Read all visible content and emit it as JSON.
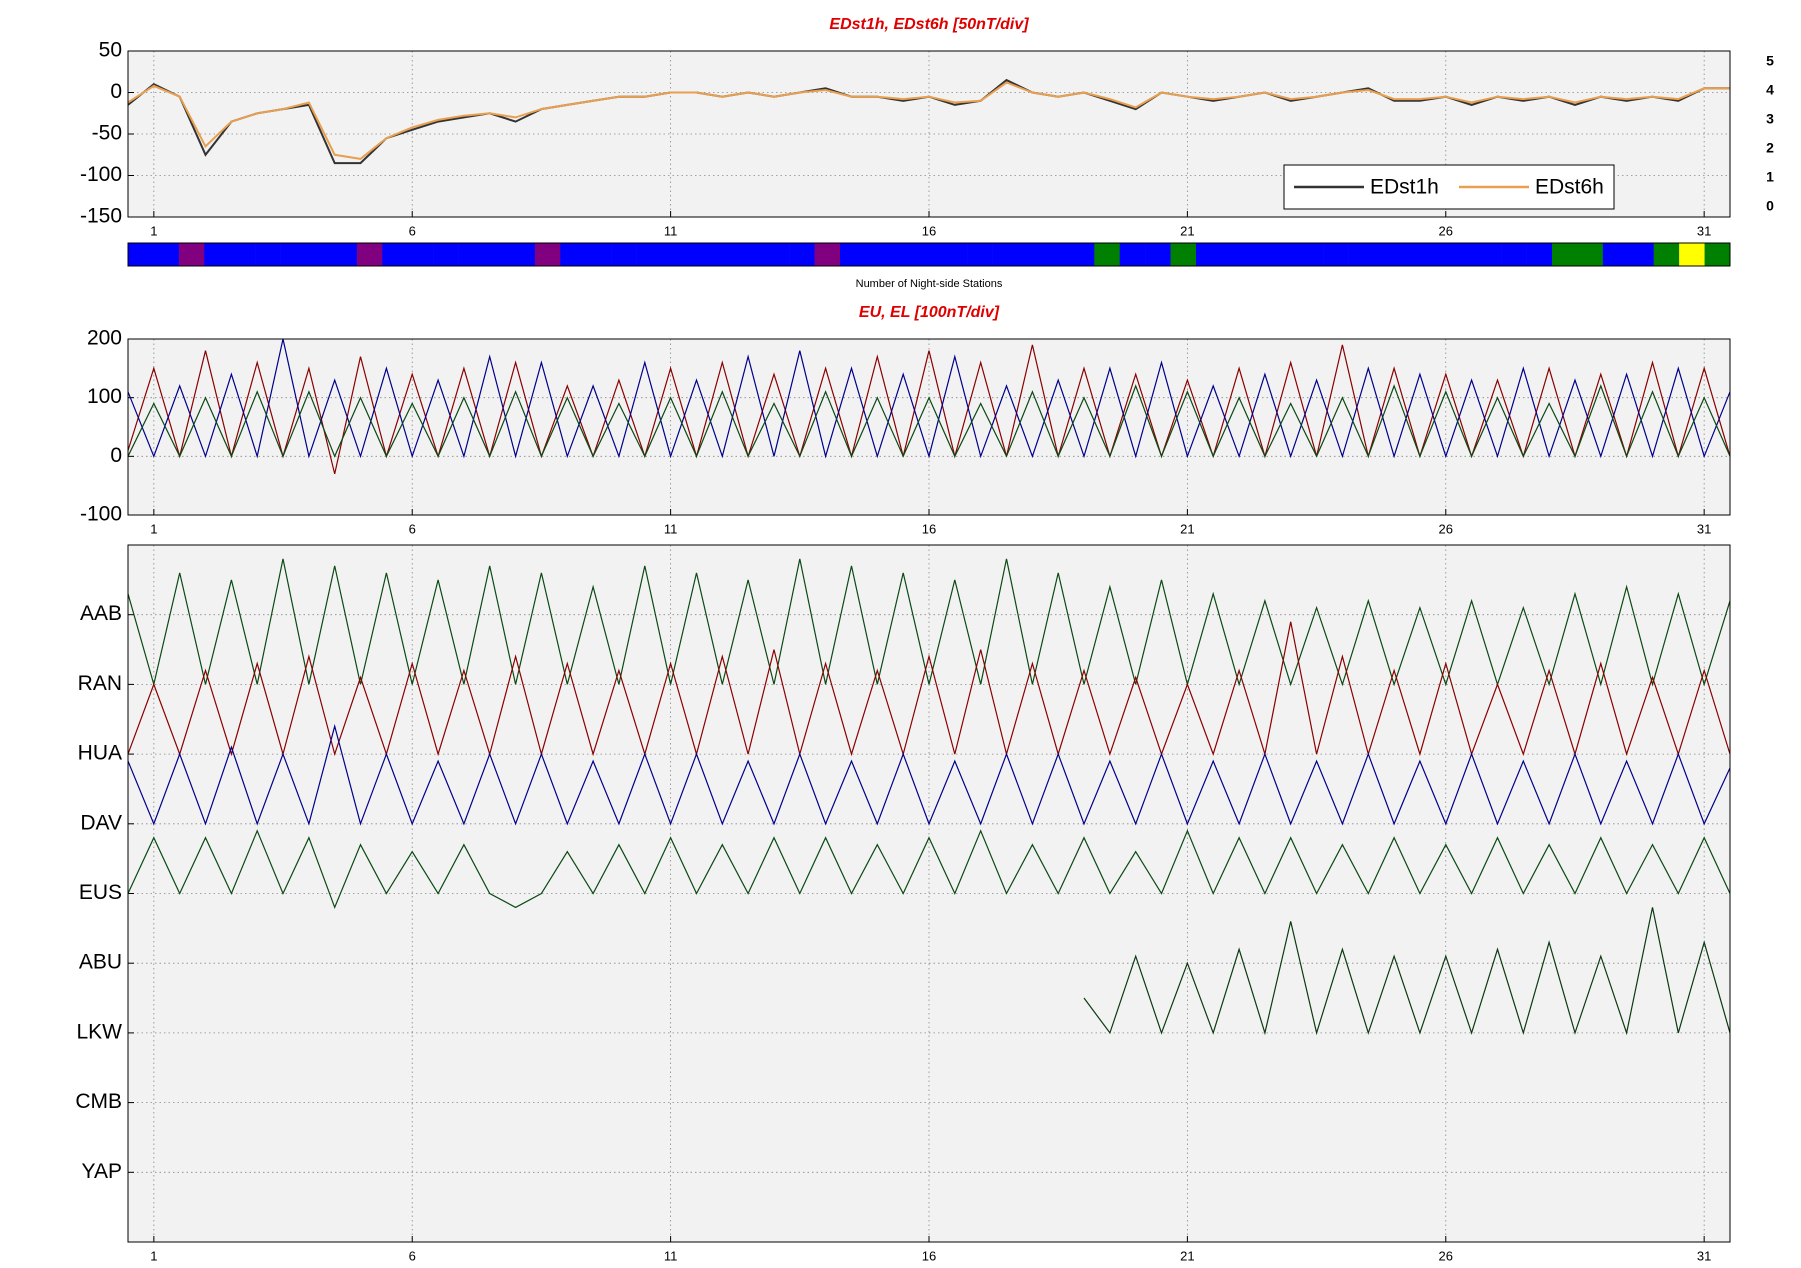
{
  "chart_data": [
    {
      "type": "line",
      "title": "EDst1h, EDst6h [50nT/div]",
      "x": [
        0.5,
        1,
        1.5,
        2,
        2.5,
        3,
        3.5,
        4,
        4.5,
        5,
        5.5,
        6,
        6.5,
        7,
        7.5,
        8,
        8.5,
        9,
        9.5,
        10,
        10.5,
        11,
        11.5,
        12,
        12.5,
        13,
        13.5,
        14,
        14.5,
        15,
        15.5,
        16,
        16.5,
        17,
        17.5,
        18,
        18.5,
        19,
        19.5,
        20,
        20.5,
        21,
        21.5,
        22,
        22.5,
        23,
        23.5,
        24,
        24.5,
        25,
        25.5,
        26,
        26.5,
        27,
        27.5,
        28,
        28.5,
        29,
        29.5,
        30,
        30.5,
        31,
        31.5
      ],
      "series": [
        {
          "name": "EDst1h",
          "color": "#333333",
          "values": [
            -15,
            10,
            -5,
            -75,
            -35,
            -25,
            -20,
            -15,
            -85,
            -85,
            -55,
            -45,
            -35,
            -30,
            -25,
            -35,
            -20,
            -15,
            -10,
            -5,
            -5,
            0,
            0,
            -5,
            0,
            -5,
            0,
            5,
            -5,
            -5,
            -10,
            -5,
            -15,
            -10,
            15,
            0,
            -5,
            0,
            -10,
            -20,
            0,
            -5,
            -10,
            -5,
            0,
            -10,
            -5,
            0,
            5,
            -10,
            -10,
            -5,
            -15,
            -5,
            -10,
            -5,
            -15,
            -5,
            -10,
            -5,
            -10,
            5,
            5
          ]
        },
        {
          "name": "EDst6h",
          "color": "#e8a050",
          "values": [
            -12,
            8,
            -5,
            -65,
            -35,
            -25,
            -20,
            -12,
            -75,
            -80,
            -55,
            -42,
            -33,
            -28,
            -25,
            -30,
            -20,
            -15,
            -10,
            -5,
            -5,
            0,
            0,
            -5,
            0,
            -5,
            0,
            3,
            -5,
            -5,
            -8,
            -5,
            -12,
            -10,
            12,
            0,
            -5,
            0,
            -8,
            -18,
            0,
            -5,
            -8,
            -5,
            0,
            -8,
            -5,
            0,
            3,
            -8,
            -8,
            -5,
            -12,
            -5,
            -8,
            -5,
            -12,
            -5,
            -8,
            -5,
            -8,
            5,
            5
          ]
        }
      ],
      "xlim": [
        0.5,
        31.5
      ],
      "xticks": [
        1,
        6,
        11,
        16,
        21,
        26,
        31
      ],
      "ylim": [
        -150,
        50
      ],
      "yticks": [
        -150,
        -100,
        -50,
        0,
        50
      ],
      "grid": true,
      "legend": "lower right"
    },
    {
      "type": "heatmap",
      "xlabel": "Number of Night-side Stations",
      "levels": [
        5,
        4,
        3,
        2,
        1,
        0
      ],
      "level_colors": [
        "#ff0000",
        "#ffff00",
        "#008000",
        "#0000ff",
        "#800080",
        "#000000"
      ],
      "values": [
        2,
        2,
        1,
        2,
        2,
        2,
        2,
        2,
        2,
        1,
        2,
        2,
        2,
        2,
        2,
        2,
        1,
        2,
        2,
        2,
        2,
        2,
        2,
        2,
        2,
        2,
        2,
        1,
        2,
        2,
        2,
        2,
        2,
        2,
        2,
        2,
        2,
        2,
        3,
        2,
        2,
        3,
        2,
        2,
        2,
        2,
        2,
        2,
        2,
        2,
        2,
        2,
        2,
        2,
        2,
        2,
        3,
        3,
        2,
        2,
        3,
        4,
        3
      ]
    },
    {
      "type": "line",
      "title": "EU, EL   [100nT/div]",
      "x": [
        0.5,
        1,
        1.5,
        2,
        2.5,
        3,
        3.5,
        4,
        4.5,
        5,
        5.5,
        6,
        6.5,
        7,
        7.5,
        8,
        8.5,
        9,
        9.5,
        10,
        10.5,
        11,
        11.5,
        12,
        12.5,
        13,
        13.5,
        14,
        14.5,
        15,
        15.5,
        16,
        16.5,
        17,
        17.5,
        18,
        18.5,
        19,
        19.5,
        20,
        20.5,
        21,
        21.5,
        22,
        22.5,
        23,
        23.5,
        24,
        24.5,
        25,
        25.5,
        26,
        26.5,
        27,
        27.5,
        28,
        28.5,
        29,
        29.5,
        30,
        30.5,
        31,
        31.5
      ],
      "series": [
        {
          "color": "#8b0000",
          "values": [
            10,
            150,
            0,
            180,
            0,
            160,
            0,
            150,
            -30,
            170,
            0,
            140,
            0,
            150,
            0,
            160,
            0,
            120,
            0,
            130,
            0,
            150,
            0,
            160,
            0,
            140,
            0,
            150,
            0,
            170,
            0,
            180,
            0,
            160,
            0,
            190,
            0,
            150,
            0,
            140,
            0,
            130,
            0,
            150,
            0,
            160,
            0,
            190,
            0,
            150,
            0,
            140,
            0,
            130,
            0,
            150,
            0,
            140,
            0,
            160,
            0,
            150,
            0
          ]
        },
        {
          "color": "#00008b",
          "values": [
            110,
            0,
            120,
            0,
            140,
            0,
            200,
            0,
            130,
            0,
            150,
            0,
            130,
            0,
            170,
            0,
            160,
            0,
            120,
            0,
            160,
            0,
            130,
            0,
            170,
            0,
            180,
            0,
            150,
            0,
            140,
            0,
            170,
            0,
            120,
            0,
            130,
            0,
            150,
            0,
            160,
            0,
            120,
            0,
            140,
            0,
            130,
            0,
            150,
            0,
            140,
            0,
            130,
            0,
            150,
            0,
            130,
            0,
            140,
            0,
            150,
            0,
            110
          ]
        },
        {
          "color": "#0b4a14",
          "values": [
            0,
            90,
            0,
            100,
            0,
            110,
            0,
            110,
            0,
            100,
            0,
            90,
            0,
            100,
            0,
            110,
            0,
            100,
            0,
            90,
            0,
            100,
            0,
            110,
            0,
            90,
            0,
            110,
            0,
            100,
            0,
            100,
            0,
            90,
            0,
            110,
            0,
            100,
            0,
            120,
            0,
            110,
            0,
            100,
            0,
            90,
            0,
            100,
            0,
            120,
            0,
            110,
            0,
            100,
            0,
            90,
            0,
            120,
            0,
            110,
            0,
            100,
            0
          ]
        }
      ],
      "xlim": [
        0.5,
        31.5
      ],
      "xticks": [
        1,
        6,
        11,
        16,
        21,
        26,
        31
      ],
      "ylim": [
        -100,
        200
      ],
      "yticks": [
        -100,
        0,
        100,
        200
      ],
      "grid": true
    },
    {
      "type": "line",
      "x": [
        0.5,
        1,
        1.5,
        2,
        2.5,
        3,
        3.5,
        4,
        4.5,
        5,
        5.5,
        6,
        6.5,
        7,
        7.5,
        8,
        8.5,
        9,
        9.5,
        10,
        10.5,
        11,
        11.5,
        12,
        12.5,
        13,
        13.5,
        14,
        14.5,
        15,
        15.5,
        16,
        16.5,
        17,
        17.5,
        18,
        18.5,
        19,
        19.5,
        20,
        20.5,
        21,
        21.5,
        22,
        22.5,
        23,
        23.5,
        24,
        24.5,
        25,
        25.5,
        26,
        26.5,
        27,
        27.5,
        28,
        28.5,
        29,
        29.5,
        30,
        30.5,
        31,
        31.5
      ],
      "series": [
        {
          "color": "#0b4a14",
          "values": [
            9.3,
            8.0,
            9.6,
            8.0,
            9.5,
            8.0,
            9.8,
            8.0,
            9.7,
            8.0,
            9.6,
            8.0,
            9.5,
            8.0,
            9.7,
            8.0,
            9.6,
            8.0,
            9.4,
            8.0,
            9.7,
            8.0,
            9.6,
            8.0,
            9.5,
            8.0,
            9.8,
            8.0,
            9.7,
            8.0,
            9.6,
            8.0,
            9.5,
            8.0,
            9.8,
            8.0,
            9.6,
            8.0,
            9.4,
            8.0,
            9.5,
            8.0,
            9.3,
            8.0,
            9.2,
            8.0,
            9.1,
            8.0,
            9.2,
            8.0,
            9.1,
            8.0,
            9.2,
            8.0,
            9.1,
            8.0,
            9.3,
            8.0,
            9.4,
            8.0,
            9.3,
            8.0,
            9.2
          ]
        },
        {
          "color": "#8b0000",
          "values": [
            7.0,
            8.0,
            7.0,
            8.2,
            7.0,
            8.3,
            7.0,
            8.4,
            7.0,
            8.1,
            7.0,
            8.3,
            7.0,
            8.2,
            7.0,
            8.4,
            7.0,
            8.3,
            7.0,
            8.2,
            7.0,
            8.3,
            7.0,
            8.4,
            7.0,
            8.5,
            7.0,
            8.3,
            7.0,
            8.2,
            7.0,
            8.4,
            7.0,
            8.5,
            7.0,
            8.3,
            7.0,
            8.2,
            7.0,
            8.1,
            7.0,
            8.0,
            7.0,
            8.2,
            7.0,
            8.9,
            7.0,
            8.4,
            7.0,
            8.2,
            7.0,
            8.3,
            7.0,
            8.0,
            7.0,
            8.2,
            7.0,
            8.3,
            7.0,
            8.1,
            7.0,
            8.2,
            7.0
          ]
        },
        {
          "color": "#00008b",
          "values": [
            6.9,
            6.0,
            7.0,
            6.0,
            7.1,
            6.0,
            7.0,
            6.0,
            7.4,
            6.0,
            7.0,
            6.0,
            6.9,
            6.0,
            7.0,
            6.0,
            7.0,
            6.0,
            6.9,
            6.0,
            7.0,
            6.0,
            7.0,
            6.0,
            6.9,
            6.0,
            7.0,
            6.0,
            6.9,
            6.0,
            7.0,
            6.0,
            6.9,
            6.0,
            7.0,
            6.0,
            7.0,
            6.0,
            6.9,
            6.0,
            7.0,
            6.0,
            6.9,
            6.0,
            7.0,
            6.0,
            6.9,
            6.0,
            7.0,
            6.0,
            6.9,
            6.0,
            7.0,
            6.0,
            6.9,
            6.0,
            7.0,
            6.0,
            6.9,
            6.0,
            7.0,
            6.0,
            6.8
          ]
        },
        {
          "color": "#0b4a14",
          "values": [
            5.0,
            5.8,
            5.0,
            5.8,
            5.0,
            5.9,
            5.0,
            5.8,
            4.8,
            5.7,
            5.0,
            5.6,
            5.0,
            5.7,
            5.0,
            4.8,
            5.0,
            5.6,
            5.0,
            5.7,
            5.0,
            5.8,
            5.0,
            5.7,
            5.0,
            5.8,
            5.0,
            5.8,
            5.0,
            5.7,
            5.0,
            5.8,
            5.0,
            5.9,
            5.0,
            5.7,
            5.0,
            5.8,
            5.0,
            5.6,
            5.0,
            5.9,
            5.0,
            5.8,
            5.0,
            5.8,
            5.0,
            5.7,
            5.0,
            5.8,
            5.0,
            5.7,
            5.0,
            5.8,
            5.0,
            5.7,
            5.0,
            5.8,
            5.0,
            5.7,
            5.0,
            5.8,
            5.0
          ]
        },
        {
          "color": "#0b3a10",
          "values": [
            null,
            null,
            null,
            null,
            null,
            null,
            null,
            null,
            null,
            null,
            null,
            null,
            null,
            null,
            null,
            null,
            null,
            null,
            null,
            null,
            null,
            null,
            null,
            null,
            null,
            null,
            null,
            null,
            null,
            null,
            null,
            null,
            null,
            null,
            null,
            null,
            null,
            3.5,
            3.0,
            4.1,
            3.0,
            4.0,
            3.0,
            4.2,
            3.0,
            4.6,
            3.0,
            4.2,
            3.0,
            4.1,
            3.0,
            4.1,
            3.0,
            4.2,
            3.0,
            4.3,
            3.0,
            4.1,
            3.0,
            4.8,
            3.0,
            4.3,
            3.0
          ]
        }
      ],
      "xlim": [
        0.5,
        31.5
      ],
      "xticks": [
        1,
        6,
        11,
        16,
        21,
        26,
        31
      ],
      "ylim": [
        0,
        10
      ],
      "yticks": [
        {
          "value": 9,
          "label": "AAB"
        },
        {
          "value": 8,
          "label": "RAN"
        },
        {
          "value": 7,
          "label": "HUA"
        },
        {
          "value": 6,
          "label": "DAV"
        },
        {
          "value": 5,
          "label": "EUS"
        },
        {
          "value": 4,
          "label": "ABU"
        },
        {
          "value": 3,
          "label": "LKW"
        },
        {
          "value": 2,
          "label": "CMB"
        },
        {
          "value": 1,
          "label": "YAP"
        }
      ],
      "grid": true
    }
  ]
}
